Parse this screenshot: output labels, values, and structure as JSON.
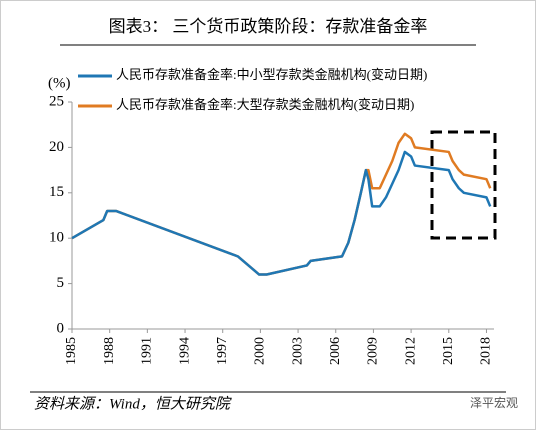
{
  "chart_data": {
    "type": "line",
    "title": "图表3：  三个货币政策阶段：存款准备金率",
    "y_label": "(%)",
    "source": "资料来源：Wind，恒大研究院",
    "watermark": "泽平宏观",
    "x": [
      1985,
      1987.5,
      1987.8,
      1988.5,
      1998.2,
      1999.9,
      2000.5,
      2003.7,
      2004.0,
      2006.5,
      2007.0,
      2007.5,
      2008.0,
      2008.4,
      2008.6,
      2008.9,
      2009.5,
      2010.0,
      2010.5,
      2011.0,
      2011.5,
      2012.0,
      2012.3,
      2015.0,
      2015.3,
      2015.8,
      2016.2,
      2018.0,
      2018.3
    ],
    "series": [
      {
        "name": "人民币存款准备金率:中小型存款类金融机构(变动日期)",
        "color": "#1f77b4",
        "values": [
          10,
          12,
          13,
          13,
          8,
          6,
          6,
          7,
          7.5,
          8,
          9.5,
          12,
          15,
          17.5,
          16.5,
          13.5,
          13.5,
          14.5,
          16,
          17.5,
          19.5,
          19,
          18,
          17.5,
          16.5,
          15.5,
          15,
          14.5,
          13.5
        ]
      },
      {
        "name": "人民币存款准备金率:大型存款类金融机构(变动日期)",
        "color": "#e07b22",
        "values": [
          10,
          12,
          13,
          13,
          8,
          6,
          6,
          7,
          7.5,
          8,
          9.5,
          12,
          15,
          17.5,
          17.5,
          15.5,
          15.5,
          17,
          18.5,
          20.5,
          21.5,
          21,
          20,
          19.5,
          18.5,
          17.5,
          17,
          16.5,
          15.5
        ]
      }
    ],
    "xlim": [
      1985,
      2018.6
    ],
    "xticks": [
      1985,
      1988,
      1991,
      1994,
      1997,
      2000,
      2003,
      2006,
      2009,
      2012,
      2015,
      2018
    ],
    "ylim": [
      0,
      25
    ],
    "yticks": [
      0,
      5,
      10,
      15,
      20,
      25
    ]
  }
}
